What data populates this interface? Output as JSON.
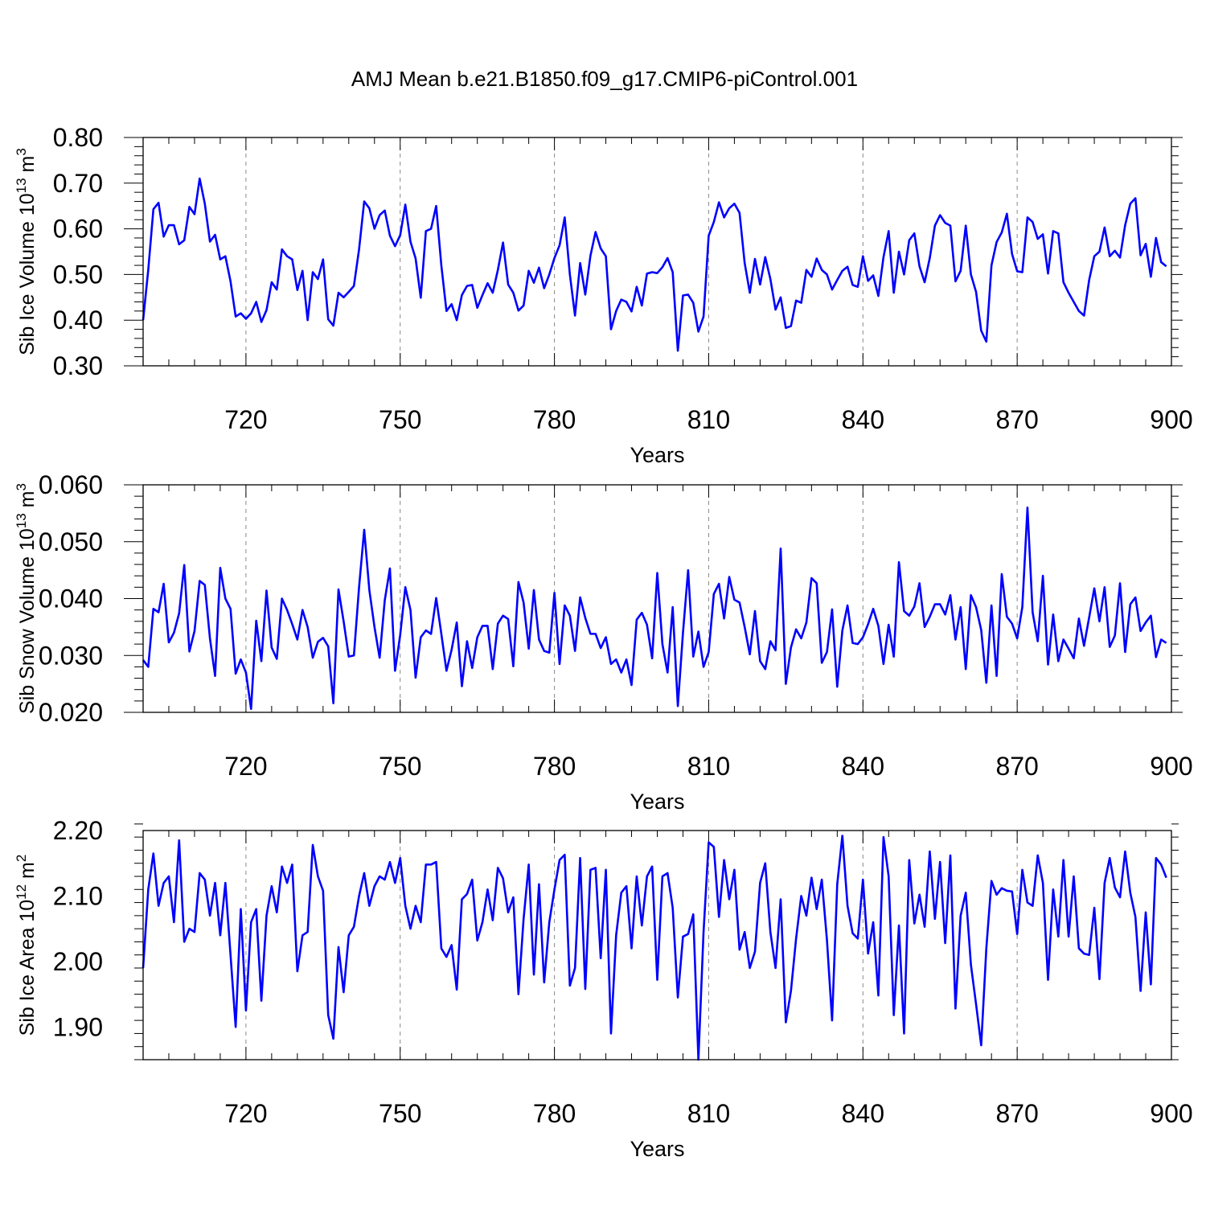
{
  "title": "AMJ Mean b.e21.B1850.f09_g17.CMIP6-piControl.001",
  "chart_data": [
    {
      "type": "line",
      "ylabel": "Sib Ice Volume 10",
      "ylabel_exp": "13",
      "ylabel_unit": "m",
      "ylabel_unit_exp": "3",
      "xlabel": "Years",
      "xlim": [
        700,
        900
      ],
      "ylim": [
        0.3,
        0.8
      ],
      "grid": "vertical-dashed",
      "xticks": [
        720,
        750,
        780,
        810,
        840,
        870,
        900
      ],
      "xtick_labels": [
        "720",
        "750",
        "780",
        "810",
        "840",
        "870",
        "900"
      ],
      "yticks": [
        0.3,
        0.4,
        0.5,
        0.6,
        0.7,
        0.8
      ],
      "ytick_labels": [
        "0.30",
        "0.40",
        "0.50",
        "0.60",
        "0.70",
        "0.80"
      ],
      "x_start": 700,
      "values": [
        0.4,
        0.51,
        0.643,
        0.657,
        0.583,
        0.608,
        0.608,
        0.566,
        0.575,
        0.648,
        0.632,
        0.71,
        0.655,
        0.572,
        0.587,
        0.533,
        0.54,
        0.485,
        0.408,
        0.415,
        0.403,
        0.415,
        0.44,
        0.396,
        0.422,
        0.483,
        0.467,
        0.555,
        0.54,
        0.533,
        0.466,
        0.508,
        0.4,
        0.505,
        0.49,
        0.533,
        0.402,
        0.388,
        0.46,
        0.45,
        0.462,
        0.475,
        0.555,
        0.66,
        0.645,
        0.6,
        0.63,
        0.64,
        0.585,
        0.562,
        0.586,
        0.653,
        0.572,
        0.535,
        0.449,
        0.595,
        0.6,
        0.65,
        0.52,
        0.42,
        0.435,
        0.4,
        0.455,
        0.475,
        0.477,
        0.427,
        0.455,
        0.481,
        0.46,
        0.51,
        0.57,
        0.478,
        0.46,
        0.421,
        0.432,
        0.508,
        0.482,
        0.515,
        0.47,
        0.5,
        0.536,
        0.564,
        0.625,
        0.5,
        0.41,
        0.525,
        0.456,
        0.541,
        0.593,
        0.557,
        0.54,
        0.38,
        0.42,
        0.445,
        0.44,
        0.419,
        0.473,
        0.432,
        0.502,
        0.505,
        0.503,
        0.516,
        0.536,
        0.505,
        0.333,
        0.454,
        0.456,
        0.438,
        0.375,
        0.408,
        0.585,
        0.615,
        0.658,
        0.625,
        0.645,
        0.655,
        0.635,
        0.525,
        0.46,
        0.534,
        0.478,
        0.538,
        0.49,
        0.423,
        0.45,
        0.383,
        0.387,
        0.443,
        0.438,
        0.51,
        0.495,
        0.535,
        0.51,
        0.5,
        0.467,
        0.488,
        0.508,
        0.517,
        0.477,
        0.473,
        0.54,
        0.486,
        0.498,
        0.453,
        0.538,
        0.595,
        0.46,
        0.55,
        0.5,
        0.575,
        0.59,
        0.518,
        0.483,
        0.536,
        0.607,
        0.63,
        0.613,
        0.607,
        0.485,
        0.508,
        0.607,
        0.5,
        0.462,
        0.377,
        0.353,
        0.52,
        0.571,
        0.592,
        0.633,
        0.545,
        0.507,
        0.505,
        0.625,
        0.615,
        0.578,
        0.588,
        0.502,
        0.595,
        0.59,
        0.483,
        0.46,
        0.44,
        0.42,
        0.41,
        0.488,
        0.54,
        0.55,
        0.603,
        0.54,
        0.552,
        0.537,
        0.608,
        0.655,
        0.667,
        0.542,
        0.567,
        0.495,
        0.58,
        0.527,
        0.518
      ]
    },
    {
      "type": "line",
      "ylabel": "Sib Snow Volume 10",
      "ylabel_exp": "13",
      "ylabel_unit": "m",
      "ylabel_unit_exp": "3",
      "xlabel": "Years",
      "xlim": [
        700,
        900
      ],
      "ylim": [
        0.02,
        0.06
      ],
      "grid": "vertical-dashed",
      "xticks": [
        720,
        750,
        780,
        810,
        840,
        870,
        900
      ],
      "xtick_labels": [
        "720",
        "750",
        "780",
        "810",
        "840",
        "870",
        "900"
      ],
      "yticks": [
        0.02,
        0.03,
        0.04,
        0.05,
        0.06
      ],
      "ytick_labels": [
        "0.020",
        "0.030",
        "0.040",
        "0.050",
        "0.060"
      ],
      "x_start": 700,
      "values": [
        0.0292,
        0.028,
        0.0382,
        0.0376,
        0.0426,
        0.0323,
        0.034,
        0.0374,
        0.0459,
        0.0307,
        0.0343,
        0.0431,
        0.0424,
        0.033,
        0.0264,
        0.0454,
        0.04,
        0.0382,
        0.0268,
        0.0293,
        0.027,
        0.0206,
        0.0361,
        0.029,
        0.0414,
        0.0314,
        0.0294,
        0.04,
        0.038,
        0.0355,
        0.0328,
        0.038,
        0.035,
        0.0296,
        0.0324,
        0.0331,
        0.0316,
        0.0216,
        0.0416,
        0.036,
        0.0298,
        0.03,
        0.042,
        0.0521,
        0.0415,
        0.035,
        0.0296,
        0.0397,
        0.0453,
        0.0273,
        0.0336,
        0.042,
        0.038,
        0.0261,
        0.0332,
        0.0344,
        0.0338,
        0.0401,
        0.0338,
        0.0273,
        0.031,
        0.0358,
        0.0246,
        0.0325,
        0.0278,
        0.0332,
        0.0352,
        0.0352,
        0.0276,
        0.0356,
        0.037,
        0.0364,
        0.0281,
        0.0429,
        0.0393,
        0.0312,
        0.0415,
        0.0328,
        0.0308,
        0.0305,
        0.041,
        0.0285,
        0.0388,
        0.037,
        0.0308,
        0.0402,
        0.0366,
        0.0338,
        0.0338,
        0.0313,
        0.0332,
        0.0285,
        0.0293,
        0.027,
        0.0293,
        0.0248,
        0.0363,
        0.0375,
        0.0354,
        0.0295,
        0.0445,
        0.032,
        0.027,
        0.0385,
        0.0211,
        0.034,
        0.045,
        0.0298,
        0.0342,
        0.028,
        0.0306,
        0.0408,
        0.0426,
        0.0365,
        0.0438,
        0.0398,
        0.0393,
        0.035,
        0.0302,
        0.0378,
        0.029,
        0.0276,
        0.0325,
        0.0309,
        0.0488,
        0.025,
        0.0314,
        0.0346,
        0.033,
        0.0358,
        0.0436,
        0.0427,
        0.0287,
        0.0306,
        0.0381,
        0.0245,
        0.0344,
        0.0388,
        0.0322,
        0.032,
        0.0332,
        0.0355,
        0.0382,
        0.0352,
        0.0285,
        0.0354,
        0.0298,
        0.0464,
        0.0378,
        0.037,
        0.0386,
        0.0427,
        0.035,
        0.0368,
        0.039,
        0.039,
        0.0372,
        0.0406,
        0.0328,
        0.0385,
        0.0276,
        0.0406,
        0.0385,
        0.0345,
        0.0252,
        0.0388,
        0.0264,
        0.0443,
        0.0368,
        0.0356,
        0.033,
        0.0385,
        0.056,
        0.0376,
        0.0325,
        0.044,
        0.0284,
        0.0372,
        0.029,
        0.0328,
        0.0312,
        0.0295,
        0.0365,
        0.0317,
        0.0367,
        0.0418,
        0.036,
        0.042,
        0.0315,
        0.0335,
        0.0427,
        0.0306,
        0.039,
        0.0402,
        0.0343,
        0.0358,
        0.037,
        0.0297,
        0.0328,
        0.0322
      ]
    },
    {
      "type": "line",
      "ylabel": "Sib Ice Area 10",
      "ylabel_exp": "12",
      "ylabel_unit": "m",
      "ylabel_unit_exp": "2",
      "xlabel": "Years",
      "xlim": [
        700,
        900
      ],
      "ylim": [
        1.85,
        2.2
      ],
      "grid": "vertical-dashed",
      "xticks": [
        720,
        750,
        780,
        810,
        840,
        870,
        900
      ],
      "xtick_labels": [
        "720",
        "750",
        "780",
        "810",
        "840",
        "870",
        "900"
      ],
      "yticks": [
        1.9,
        2.0,
        2.1,
        2.2
      ],
      "ytick_labels": [
        "1.90",
        "2.00",
        "2.10",
        "2.20"
      ],
      "x_start": 700,
      "values": [
        1.99,
        2.11,
        2.165,
        2.085,
        2.12,
        2.13,
        2.06,
        2.185,
        2.03,
        2.05,
        2.045,
        2.135,
        2.125,
        2.07,
        2.12,
        2.04,
        2.12,
        2.01,
        1.9,
        2.08,
        1.925,
        2.06,
        2.08,
        1.94,
        2.07,
        2.115,
        2.075,
        2.145,
        2.12,
        2.148,
        1.985,
        2.04,
        2.045,
        2.178,
        2.13,
        2.108,
        1.918,
        1.882,
        2.022,
        1.953,
        2.04,
        2.053,
        2.1,
        2.135,
        2.085,
        2.115,
        2.13,
        2.125,
        2.152,
        2.12,
        2.158,
        2.085,
        2.05,
        2.085,
        2.06,
        2.148,
        2.148,
        2.152,
        2.02,
        2.007,
        2.025,
        1.957,
        2.095,
        2.103,
        2.125,
        2.032,
        2.06,
        2.11,
        2.063,
        2.143,
        2.127,
        2.075,
        2.098,
        1.95,
        2.065,
        2.148,
        1.98,
        2.118,
        1.968,
        2.06,
        2.11,
        2.155,
        2.163,
        1.963,
        1.99,
        2.158,
        1.958,
        2.14,
        2.143,
        2.005,
        2.14,
        1.89,
        2.04,
        2.105,
        2.115,
        2.02,
        2.13,
        2.055,
        2.13,
        2.145,
        1.972,
        2.13,
        2.135,
        2.082,
        1.945,
        2.038,
        2.042,
        2.072,
        1.85,
        2.045,
        2.182,
        2.175,
        2.068,
        2.155,
        2.095,
        2.14,
        2.018,
        2.045,
        1.99,
        2.015,
        2.12,
        2.15,
        2.045,
        1.99,
        2.095,
        1.907,
        1.955,
        2.035,
        2.1,
        2.07,
        2.128,
        2.08,
        2.125,
        2.033,
        1.91,
        2.118,
        2.192,
        2.085,
        2.043,
        2.035,
        2.125,
        2.012,
        2.06,
        1.948,
        2.19,
        2.13,
        1.918,
        2.055,
        1.89,
        2.155,
        2.058,
        2.102,
        2.053,
        2.168,
        2.065,
        2.152,
        2.028,
        2.162,
        1.928,
        2.07,
        2.105,
        1.995,
        1.935,
        1.872,
        2.02,
        2.123,
        2.102,
        2.112,
        2.108,
        2.107,
        2.042,
        2.14,
        2.09,
        2.085,
        2.162,
        2.12,
        1.972,
        2.11,
        2.038,
        2.155,
        2.038,
        2.13,
        2.02,
        2.012,
        2.01,
        2.082,
        1.973,
        2.12,
        2.158,
        2.113,
        2.098,
        2.168,
        2.105,
        2.068,
        1.955,
        2.075,
        1.965,
        2.158,
        2.148,
        2.128
      ]
    }
  ]
}
